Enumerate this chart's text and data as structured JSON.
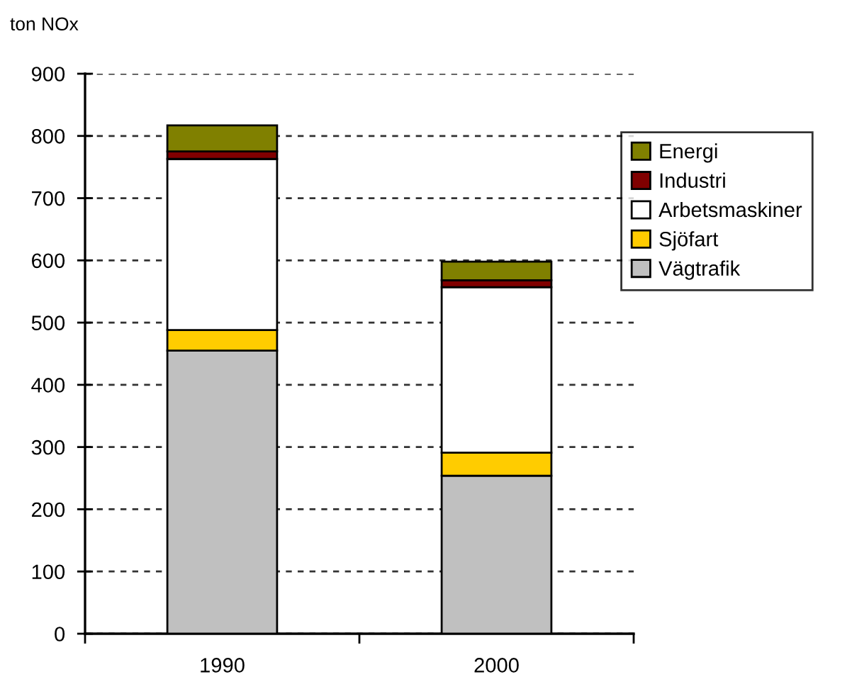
{
  "chart_data": {
    "type": "bar",
    "stacked": true,
    "ylabel": "ton NOx",
    "categories": [
      "1990",
      "2000"
    ],
    "series": [
      {
        "name": "Vägtrafik",
        "color": "#c0c0c0",
        "values": [
          455,
          254
        ]
      },
      {
        "name": "Sjöfart",
        "color": "#ffcc00",
        "values": [
          33,
          37
        ]
      },
      {
        "name": "Arbetsmaskiner",
        "color": "#ffffff",
        "values": [
          275,
          266
        ]
      },
      {
        "name": "Industri",
        "color": "#800000",
        "values": [
          12,
          11
        ]
      },
      {
        "name": "Energi",
        "color": "#808000",
        "values": [
          42,
          30
        ]
      }
    ],
    "ylim": [
      0,
      900
    ],
    "yticks": [
      0,
      100,
      200,
      300,
      400,
      500,
      600,
      700,
      800,
      900
    ],
    "grid": "y",
    "legend": "right"
  }
}
